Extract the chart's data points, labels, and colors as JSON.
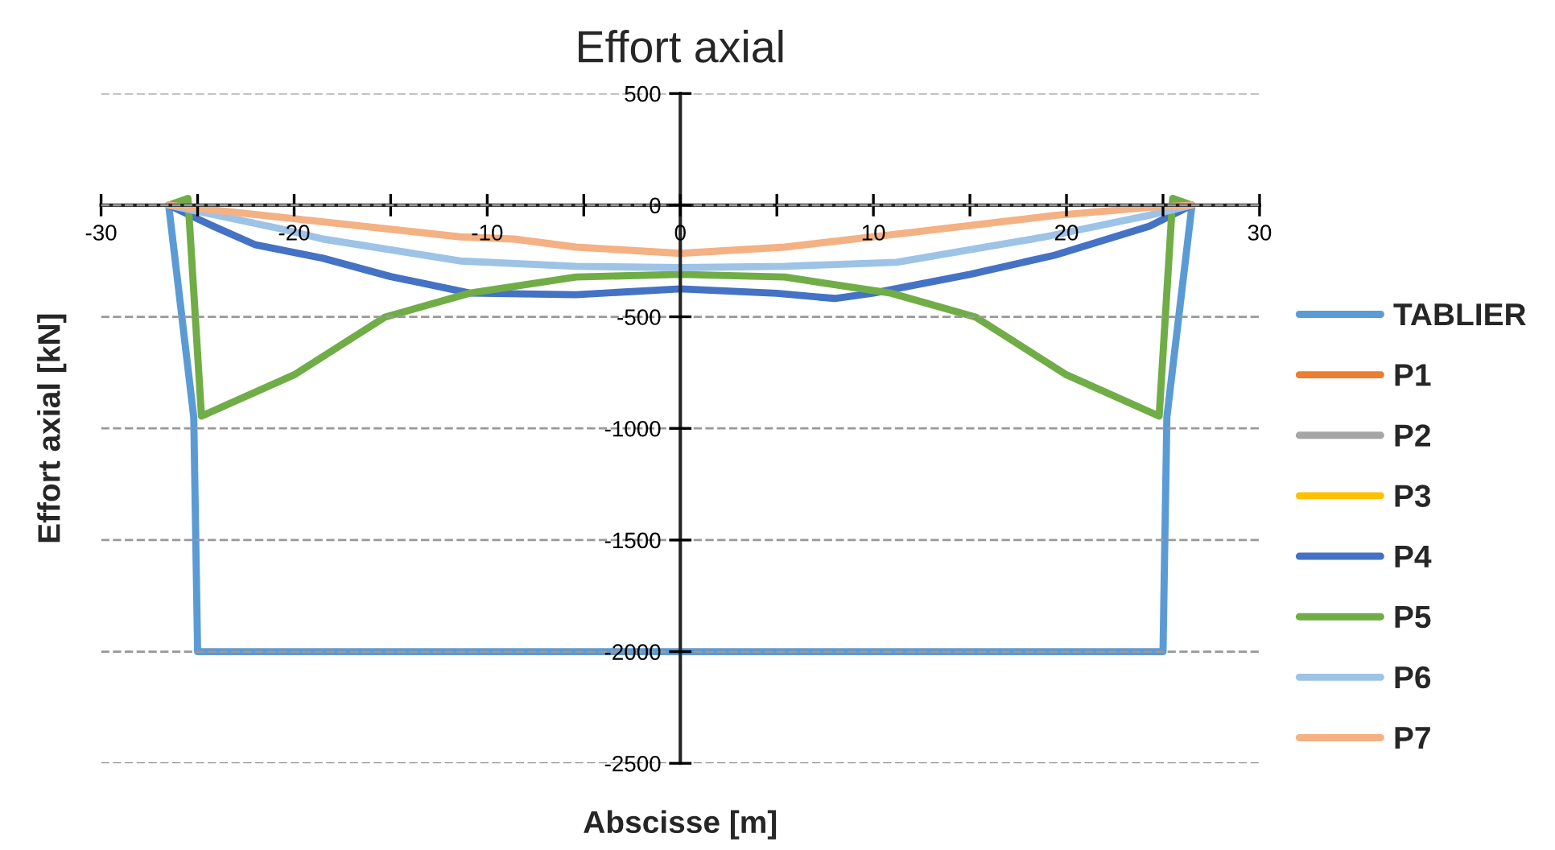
{
  "chart_data": {
    "type": "line",
    "title": "Effort axial",
    "xlabel": "Abscisse [m]",
    "ylabel": "Effort axial [kN]",
    "xlim": [
      -30,
      30
    ],
    "ylim": [
      -2500,
      500
    ],
    "xticks": [
      -30,
      {
        "value": -25,
        "label": null
      },
      -20,
      {
        "value": -15,
        "label": null
      },
      -10,
      {
        "value": -5,
        "label": null
      },
      0,
      {
        "value": 5,
        "label": null
      },
      10,
      {
        "value": 15,
        "label": null
      },
      20,
      {
        "value": 25,
        "label": null
      },
      30
    ],
    "yticks": [
      -2500,
      -2000,
      -1500,
      -1000,
      -500,
      0,
      500
    ],
    "grid": "y",
    "legend": "right",
    "line_style": "solid",
    "marker": "none",
    "series": [
      {
        "name": "TABLIER",
        "color": "#5b9bd5",
        "x": [
          -26.5,
          -25.2,
          -25,
          25,
          25.2,
          26.5
        ],
        "values": [
          0,
          -950,
          -2000,
          -2000,
          -950,
          0
        ]
      },
      {
        "name": "P1",
        "color": "#ed7d31"
      },
      {
        "name": "P2",
        "color": "#a5a5a5"
      },
      {
        "name": "P3",
        "color": "#ffc000"
      },
      {
        "name": "P4",
        "color": "#4472c4",
        "x": [
          -26.5,
          -24.3,
          -22,
          -18.5,
          -15,
          -10.9,
          -5.4,
          0,
          5,
          8,
          10,
          15,
          19.4,
          24.3,
          26.5
        ],
        "values": [
          0,
          -90,
          -178,
          -238,
          -320,
          -394,
          -401,
          -375,
          -395,
          -418,
          -394,
          -310,
          -224,
          -94,
          0
        ]
      },
      {
        "name": "P5",
        "color": "#70ad47",
        "x": [
          -26.5,
          -25.5,
          -24.8,
          -20,
          -15.3,
          -10.9,
          -5.4,
          0,
          5.4,
          10.9,
          15.3,
          20,
          24.8,
          25.5,
          26.5
        ],
        "values": [
          0,
          30,
          -945,
          -760,
          -502,
          -394,
          -322,
          -310,
          -322,
          -394,
          -502,
          -760,
          -945,
          30,
          0
        ]
      },
      {
        "name": "P6",
        "color": "#9dc3e6",
        "x": [
          -26.5,
          -20.7,
          -18.5,
          -11.4,
          -5.4,
          0,
          5.4,
          11.2,
          18.9,
          24.3,
          26.5
        ],
        "values": [
          0,
          -106,
          -152,
          -250,
          -274,
          -280,
          -274,
          -256,
          -142,
          -45,
          0
        ]
      },
      {
        "name": "P7",
        "color": "#f4b183",
        "x": [
          -26.5,
          -20.3,
          -11.4,
          -8.6,
          -5.4,
          0,
          5.4,
          9,
          11.2,
          19.4,
          24.3,
          26.5
        ],
        "values": [
          0,
          -58,
          -142,
          -152,
          -188,
          -216,
          -188,
          -152,
          -130,
          -46,
          -10,
          0
        ]
      }
    ]
  }
}
